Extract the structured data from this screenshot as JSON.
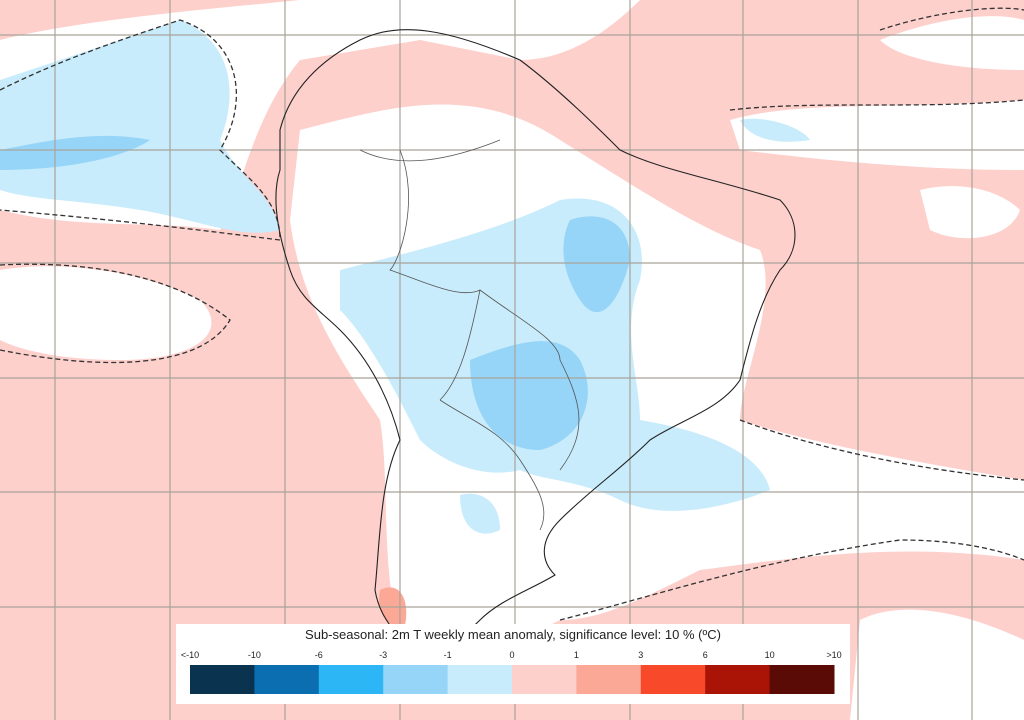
{
  "legend": {
    "title": "Sub-seasonal: 2m T weekly mean anomaly, significance level: 10 % (ºC)",
    "labels": [
      "<-10",
      "-10",
      "-6",
      "-3",
      "-1",
      "0",
      "1",
      "3",
      "6",
      "10",
      ">10"
    ],
    "colors": [
      "#0a3350",
      "#0a6eb0",
      "#2db6f5",
      "#96d5f7",
      "#c8ecfb",
      "#fdd0cc",
      "#fba897",
      "#f84a2b",
      "#aa1407",
      "#5a0b05"
    ]
  }
}
